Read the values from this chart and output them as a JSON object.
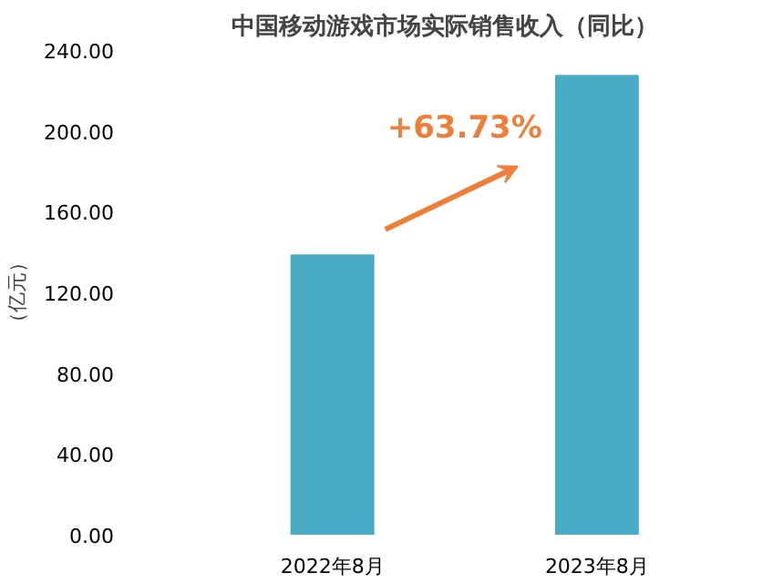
{
  "chart_data": {
    "type": "bar",
    "title": "中国移动游戏市场实际销售收入（同比）",
    "ylabel": "（亿元）",
    "categories": [
      "2022年8月",
      "2023年8月"
    ],
    "values": [
      138.4,
      227.2
    ],
    "color": "#4aabc6",
    "ylim": [
      0,
      240
    ],
    "yticks": [
      {
        "value": 0,
        "label": "0.00"
      },
      {
        "value": 40,
        "label": "40.00"
      },
      {
        "value": 80,
        "label": "80.00"
      },
      {
        "value": 120,
        "label": "120.00"
      },
      {
        "value": 160,
        "label": "160.00"
      },
      {
        "value": 200,
        "label": "200.00"
      },
      {
        "value": 240,
        "label": "240.00"
      }
    ],
    "grid": false,
    "annotations": [
      "+63.73%"
    ]
  }
}
